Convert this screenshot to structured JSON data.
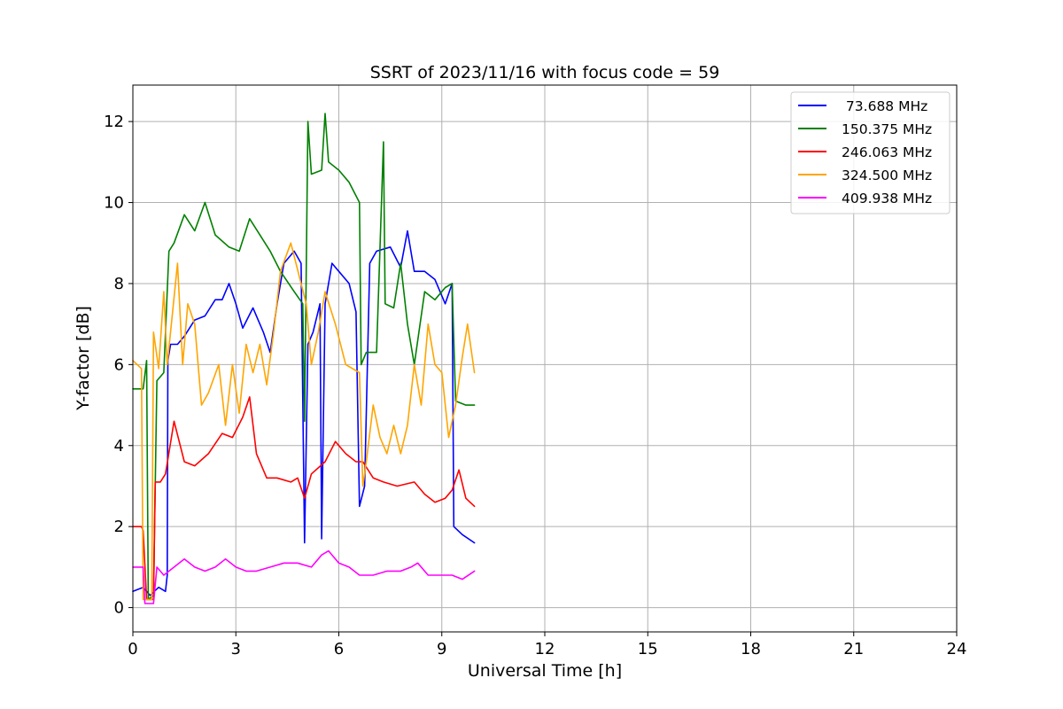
{
  "chart_data": {
    "type": "line",
    "title": "SSRT of 2023/11/16 with focus code = 59",
    "xlabel": "Universal Time [h]",
    "ylabel": "Y-factor [dB]",
    "xlim": [
      0,
      24
    ],
    "ylim": [
      -0.6,
      12.9
    ],
    "xticks": [
      0,
      3,
      6,
      9,
      12,
      15,
      18,
      21,
      24
    ],
    "yticks": [
      0,
      2,
      4,
      6,
      8,
      10,
      12
    ],
    "grid": true,
    "legend_position": "top-right",
    "series": [
      {
        "name": " 73.688 MHz",
        "color": "#0000ff",
        "points": [
          [
            0,
            0.4
          ],
          [
            0.3,
            0.5
          ],
          [
            0.5,
            0.3
          ],
          [
            0.75,
            0.5
          ],
          [
            0.95,
            0.4
          ],
          [
            1.0,
            0.8
          ],
          [
            1.02,
            6.1
          ],
          [
            1.1,
            6.5
          ],
          [
            1.3,
            6.5
          ],
          [
            1.5,
            6.7
          ],
          [
            1.8,
            7.1
          ],
          [
            2.1,
            7.2
          ],
          [
            2.4,
            7.6
          ],
          [
            2.6,
            7.6
          ],
          [
            2.8,
            8.0
          ],
          [
            3.0,
            7.5
          ],
          [
            3.2,
            6.9
          ],
          [
            3.5,
            7.4
          ],
          [
            3.8,
            6.8
          ],
          [
            4.0,
            6.3
          ],
          [
            4.2,
            7.5
          ],
          [
            4.4,
            8.5
          ],
          [
            4.7,
            8.8
          ],
          [
            4.9,
            8.5
          ],
          [
            5.0,
            1.6
          ],
          [
            5.1,
            6.5
          ],
          [
            5.25,
            6.8
          ],
          [
            5.45,
            7.5
          ],
          [
            5.5,
            1.7
          ],
          [
            5.6,
            7.5
          ],
          [
            5.8,
            8.5
          ],
          [
            6.0,
            8.3
          ],
          [
            6.3,
            8.0
          ],
          [
            6.5,
            7.3
          ],
          [
            6.6,
            2.5
          ],
          [
            6.75,
            3.0
          ],
          [
            6.9,
            8.5
          ],
          [
            7.1,
            8.8
          ],
          [
            7.5,
            8.9
          ],
          [
            7.8,
            8.4
          ],
          [
            8.0,
            9.3
          ],
          [
            8.2,
            8.3
          ],
          [
            8.5,
            8.3
          ],
          [
            8.8,
            8.1
          ],
          [
            9.1,
            7.5
          ],
          [
            9.3,
            8.0
          ],
          [
            9.35,
            2.0
          ],
          [
            9.6,
            1.8
          ],
          [
            9.95,
            1.6
          ]
        ]
      },
      {
        "name": "150.375 MHz",
        "color": "#008000",
        "points": [
          [
            0,
            5.4
          ],
          [
            0.3,
            5.4
          ],
          [
            0.4,
            6.1
          ],
          [
            0.45,
            0.2
          ],
          [
            0.6,
            0.3
          ],
          [
            0.7,
            5.6
          ],
          [
            0.9,
            5.8
          ],
          [
            1.05,
            8.8
          ],
          [
            1.2,
            9.0
          ],
          [
            1.5,
            9.7
          ],
          [
            1.8,
            9.3
          ],
          [
            2.1,
            10.0
          ],
          [
            2.4,
            9.2
          ],
          [
            2.8,
            8.9
          ],
          [
            3.1,
            8.8
          ],
          [
            3.4,
            9.6
          ],
          [
            3.7,
            9.2
          ],
          [
            4.0,
            8.8
          ],
          [
            4.3,
            8.3
          ],
          [
            4.7,
            7.8
          ],
          [
            4.95,
            7.5
          ],
          [
            5.0,
            4.6
          ],
          [
            5.1,
            12.0
          ],
          [
            5.2,
            10.7
          ],
          [
            5.5,
            10.8
          ],
          [
            5.6,
            12.2
          ],
          [
            5.7,
            11.0
          ],
          [
            6.0,
            10.8
          ],
          [
            6.3,
            10.5
          ],
          [
            6.6,
            10.0
          ],
          [
            6.65,
            6.0
          ],
          [
            6.8,
            6.3
          ],
          [
            7.1,
            6.3
          ],
          [
            7.3,
            11.5
          ],
          [
            7.35,
            7.5
          ],
          [
            7.6,
            7.4
          ],
          [
            7.8,
            8.5
          ],
          [
            8.0,
            7.0
          ],
          [
            8.2,
            6.0
          ],
          [
            8.5,
            7.8
          ],
          [
            8.8,
            7.6
          ],
          [
            9.1,
            7.9
          ],
          [
            9.3,
            8.0
          ],
          [
            9.4,
            5.1
          ],
          [
            9.7,
            5.0
          ],
          [
            9.95,
            5.0
          ]
        ]
      },
      {
        "name": "246.063 MHz",
        "color": "#ff0000",
        "points": [
          [
            0,
            2.0
          ],
          [
            0.25,
            2.0
          ],
          [
            0.3,
            1.9
          ],
          [
            0.4,
            0.2
          ],
          [
            0.6,
            0.2
          ],
          [
            0.65,
            3.1
          ],
          [
            0.8,
            3.1
          ],
          [
            0.95,
            3.3
          ],
          [
            1.2,
            4.6
          ],
          [
            1.5,
            3.6
          ],
          [
            1.8,
            3.5
          ],
          [
            2.2,
            3.8
          ],
          [
            2.6,
            4.3
          ],
          [
            2.9,
            4.2
          ],
          [
            3.2,
            4.7
          ],
          [
            3.4,
            5.2
          ],
          [
            3.6,
            3.8
          ],
          [
            3.9,
            3.2
          ],
          [
            4.2,
            3.2
          ],
          [
            4.6,
            3.1
          ],
          [
            4.8,
            3.2
          ],
          [
            5.0,
            2.7
          ],
          [
            5.2,
            3.3
          ],
          [
            5.6,
            3.6
          ],
          [
            5.9,
            4.1
          ],
          [
            6.2,
            3.8
          ],
          [
            6.5,
            3.6
          ],
          [
            6.7,
            3.6
          ],
          [
            7.0,
            3.2
          ],
          [
            7.3,
            3.1
          ],
          [
            7.7,
            3.0
          ],
          [
            8.2,
            3.1
          ],
          [
            8.5,
            2.8
          ],
          [
            8.8,
            2.6
          ],
          [
            9.1,
            2.7
          ],
          [
            9.3,
            2.9
          ],
          [
            9.5,
            3.4
          ],
          [
            9.7,
            2.7
          ],
          [
            9.95,
            2.5
          ]
        ]
      },
      {
        "name": "324.500 MHz",
        "color": "#ffa500",
        "points": [
          [
            0,
            6.1
          ],
          [
            0.25,
            5.9
          ],
          [
            0.3,
            0.2
          ],
          [
            0.55,
            0.2
          ],
          [
            0.6,
            6.8
          ],
          [
            0.75,
            5.9
          ],
          [
            0.9,
            7.8
          ],
          [
            1.0,
            6.0
          ],
          [
            1.3,
            8.5
          ],
          [
            1.45,
            6.0
          ],
          [
            1.6,
            7.5
          ],
          [
            1.8,
            7.0
          ],
          [
            2.0,
            5.0
          ],
          [
            2.2,
            5.3
          ],
          [
            2.5,
            6.0
          ],
          [
            2.7,
            4.5
          ],
          [
            2.9,
            6.0
          ],
          [
            3.1,
            4.8
          ],
          [
            3.3,
            6.5
          ],
          [
            3.5,
            5.8
          ],
          [
            3.7,
            6.5
          ],
          [
            3.9,
            5.5
          ],
          [
            4.1,
            6.8
          ],
          [
            4.3,
            8.3
          ],
          [
            4.6,
            9.0
          ],
          [
            4.9,
            8.0
          ],
          [
            5.05,
            7.5
          ],
          [
            5.2,
            6.0
          ],
          [
            5.4,
            6.8
          ],
          [
            5.6,
            7.8
          ],
          [
            5.9,
            7.0
          ],
          [
            6.2,
            6.0
          ],
          [
            6.6,
            5.8
          ],
          [
            6.7,
            3.0
          ],
          [
            6.8,
            3.6
          ],
          [
            7.0,
            5.0
          ],
          [
            7.2,
            4.2
          ],
          [
            7.4,
            3.8
          ],
          [
            7.6,
            4.5
          ],
          [
            7.8,
            3.8
          ],
          [
            8.0,
            4.5
          ],
          [
            8.2,
            6.0
          ],
          [
            8.4,
            5.0
          ],
          [
            8.6,
            7.0
          ],
          [
            8.8,
            6.0
          ],
          [
            9.0,
            5.8
          ],
          [
            9.2,
            4.2
          ],
          [
            9.4,
            5.0
          ],
          [
            9.6,
            6.2
          ],
          [
            9.75,
            7.0
          ],
          [
            9.95,
            5.8
          ]
        ]
      },
      {
        "name": "409.938 MHz",
        "color": "#ff00ff",
        "points": [
          [
            0,
            1.0
          ],
          [
            0.3,
            1.0
          ],
          [
            0.35,
            0.1
          ],
          [
            0.6,
            0.1
          ],
          [
            0.7,
            1.0
          ],
          [
            0.9,
            0.8
          ],
          [
            1.2,
            1.0
          ],
          [
            1.5,
            1.2
          ],
          [
            1.8,
            1.0
          ],
          [
            2.1,
            0.9
          ],
          [
            2.4,
            1.0
          ],
          [
            2.7,
            1.2
          ],
          [
            3.0,
            1.0
          ],
          [
            3.3,
            0.9
          ],
          [
            3.6,
            0.9
          ],
          [
            4.0,
            1.0
          ],
          [
            4.4,
            1.1
          ],
          [
            4.8,
            1.1
          ],
          [
            5.2,
            1.0
          ],
          [
            5.5,
            1.3
          ],
          [
            5.7,
            1.4
          ],
          [
            6.0,
            1.1
          ],
          [
            6.3,
            1.0
          ],
          [
            6.6,
            0.8
          ],
          [
            7.0,
            0.8
          ],
          [
            7.4,
            0.9
          ],
          [
            7.8,
            0.9
          ],
          [
            8.1,
            1.0
          ],
          [
            8.3,
            1.1
          ],
          [
            8.6,
            0.8
          ],
          [
            9.0,
            0.8
          ],
          [
            9.3,
            0.8
          ],
          [
            9.6,
            0.7
          ],
          [
            9.95,
            0.9
          ]
        ]
      }
    ]
  }
}
